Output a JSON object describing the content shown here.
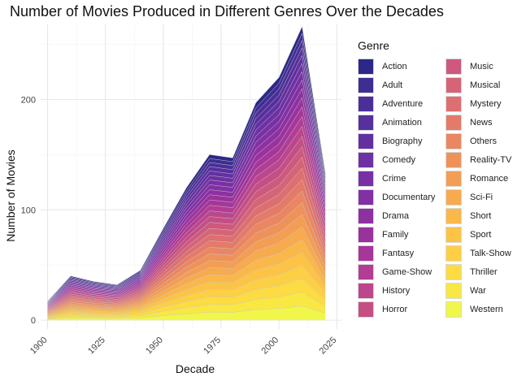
{
  "chart_data": {
    "type": "area",
    "stacked": true,
    "title": "Number of Movies Produced in Different Genres Over the Decades",
    "xlabel": "Decade",
    "ylabel": "Number of Movies",
    "legend_title": "Genre",
    "legend_position": "right",
    "grid": true,
    "xlim": [
      1897,
      2027
    ],
    "ylim": [
      -8,
      268
    ],
    "x_ticks": [
      1900,
      1925,
      1950,
      1975,
      2000,
      2025
    ],
    "y_ticks": [
      0,
      100,
      200
    ],
    "x": [
      1900,
      1910,
      1920,
      1930,
      1940,
      1950,
      1960,
      1970,
      1980,
      1990,
      2000,
      2010,
      2020
    ],
    "totals": [
      17,
      40,
      35,
      32,
      45,
      83,
      120,
      150,
      147,
      197,
      220,
      266,
      133
    ],
    "series": [
      {
        "name": "Action",
        "color": "#2C2789"
      },
      {
        "name": "Adult",
        "color": "#3E2E91"
      },
      {
        "name": "Adventure",
        "color": "#4B2F98"
      },
      {
        "name": "Animation",
        "color": "#56309D"
      },
      {
        "name": "Biography",
        "color": "#6230A1"
      },
      {
        "name": "Comedy",
        "color": "#6D31A3"
      },
      {
        "name": "Crime",
        "color": "#7830A5"
      },
      {
        "name": "Documentary",
        "color": "#8330A4"
      },
      {
        "name": "Drama",
        "color": "#8E30A2"
      },
      {
        "name": "Family",
        "color": "#9A329E"
      },
      {
        "name": "Fantasy",
        "color": "#A6369A"
      },
      {
        "name": "Game-Show",
        "color": "#B13D94"
      },
      {
        "name": "History",
        "color": "#BC468C"
      },
      {
        "name": "Horror",
        "color": "#C54E85"
      },
      {
        "name": "Music",
        "color": "#CE597E"
      },
      {
        "name": "Musical",
        "color": "#D66477"
      },
      {
        "name": "Mystery",
        "color": "#DD6F70"
      },
      {
        "name": "News",
        "color": "#E47A68"
      },
      {
        "name": "Others",
        "color": "#EA8661"
      },
      {
        "name": "Reality-TV",
        "color": "#EF925A"
      },
      {
        "name": "Romance",
        "color": "#F39E54"
      },
      {
        "name": "Sci-Fi",
        "color": "#F7AA4E"
      },
      {
        "name": "Short",
        "color": "#FAB74A"
      },
      {
        "name": "Sport",
        "color": "#FCC346"
      },
      {
        "name": "Talk-Show",
        "color": "#FDCF44"
      },
      {
        "name": "Thriller",
        "color": "#FCDB43"
      },
      {
        "name": "War",
        "color": "#F9E744"
      },
      {
        "name": "Western",
        "color": "#F1F64A"
      }
    ]
  }
}
